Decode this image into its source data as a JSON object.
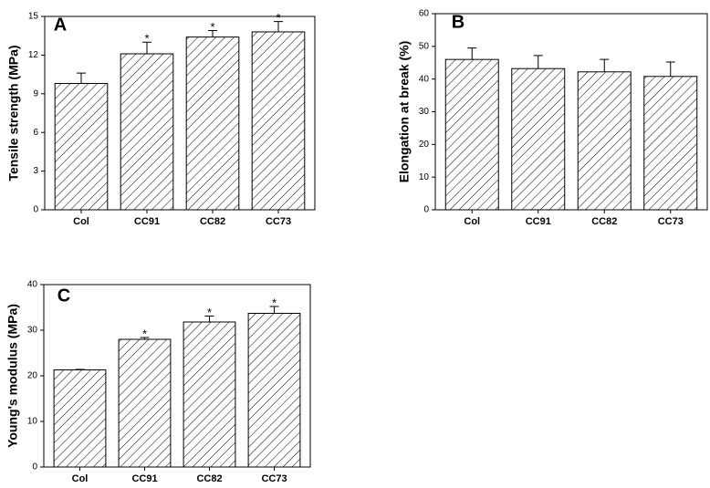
{
  "chart_data": [
    {
      "type": "bar",
      "label": "A",
      "ylabel": "Tensile strength (MPa)",
      "categories": [
        "Col",
        "CC91",
        "CC82",
        "CC73"
      ],
      "values": [
        9.8,
        12.1,
        13.4,
        13.8
      ],
      "errors": [
        0.8,
        0.9,
        0.5,
        0.8
      ],
      "markers": [
        null,
        "*",
        "*",
        "*"
      ],
      "ylim": [
        0,
        15
      ],
      "yticks": [
        0,
        3,
        6,
        9,
        12,
        15
      ],
      "color": "#000000"
    },
    {
      "type": "bar",
      "label": "B",
      "ylabel": "Elongation at break (%)",
      "categories": [
        "Col",
        "CC91",
        "CC82",
        "CC73"
      ],
      "values": [
        46,
        43.2,
        42.2,
        40.8
      ],
      "errors": [
        3.5,
        4,
        3.8,
        4.4
      ],
      "ylim": [
        0,
        60
      ],
      "yticks": [
        0,
        10,
        20,
        30,
        40,
        50,
        60
      ],
      "color": "#000000"
    },
    {
      "type": "bar",
      "label": "C",
      "ylabel": "Young's modulus (MPa)",
      "categories": [
        "Col",
        "CC91",
        "CC82",
        "CC73"
      ],
      "values": [
        21.3,
        28.0,
        31.8,
        33.7
      ],
      "errors": [
        0.1,
        0.4,
        1.3,
        1.5
      ],
      "markers": [
        null,
        "*",
        "*",
        "*"
      ],
      "ylim": [
        0,
        40
      ],
      "yticks": [
        0,
        10,
        20,
        30,
        40
      ],
      "color": "#000000"
    }
  ]
}
